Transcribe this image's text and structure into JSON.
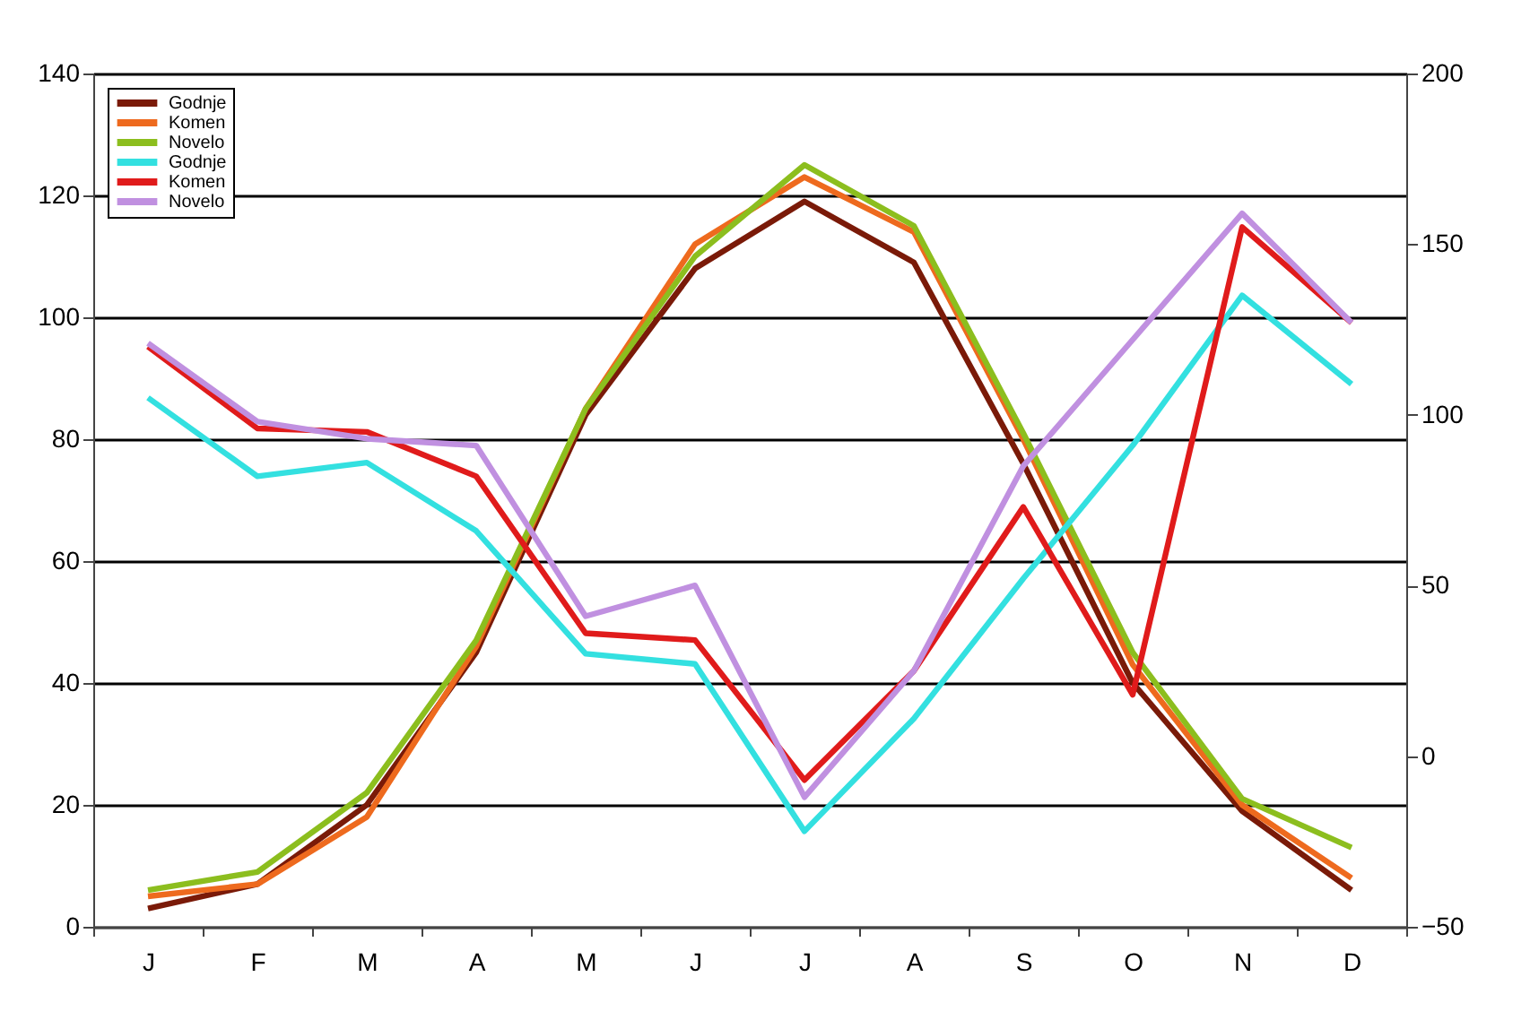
{
  "chart_data": {
    "type": "line",
    "categories": [
      "J",
      "F",
      "M",
      "A",
      "M",
      "J",
      "J",
      "A",
      "S",
      "O",
      "N",
      "D"
    ],
    "series": [
      {
        "name": "Godnje",
        "color": "#7a1a08",
        "values": [
          3,
          7,
          20,
          45,
          84,
          108,
          119,
          109,
          76,
          40,
          19,
          6
        ]
      },
      {
        "name": "Komen",
        "color": "#ee6a1e",
        "values": [
          5,
          7,
          18,
          46,
          85,
          112,
          123,
          114,
          80,
          43,
          20,
          8
        ]
      },
      {
        "name": "Novelo",
        "color": "#8cbe1e",
        "values": [
          6,
          9,
          22,
          47,
          85,
          110,
          125,
          115,
          81,
          45,
          21,
          13
        ]
      },
      {
        "name": "Godnje",
        "color": "#33e0e0",
        "axis": "y2",
        "values": [
          105,
          82,
          86,
          66,
          30,
          27,
          -22,
          11,
          52,
          91,
          135,
          109
        ]
      },
      {
        "name": "Komen",
        "color": "#e01b1b",
        "axis": "y2",
        "values": [
          120,
          96,
          95,
          82,
          36,
          34,
          -7,
          25,
          73,
          18,
          155,
          127
        ]
      },
      {
        "name": "Novelo",
        "color": "#c090e0",
        "axis": "y2",
        "values": [
          121,
          98,
          93,
          91,
          41,
          50,
          -12,
          25,
          85,
          122,
          159,
          127
        ]
      }
    ],
    "ylim": [
      0,
      140
    ],
    "yticks": [
      0,
      20,
      40,
      60,
      80,
      100,
      120,
      140
    ],
    "y2lim": [
      -50,
      200
    ],
    "y2ticks": [
      -50,
      0,
      50,
      100,
      150,
      200
    ],
    "grid": "y",
    "legend": "top left",
    "line_style": "solid"
  }
}
